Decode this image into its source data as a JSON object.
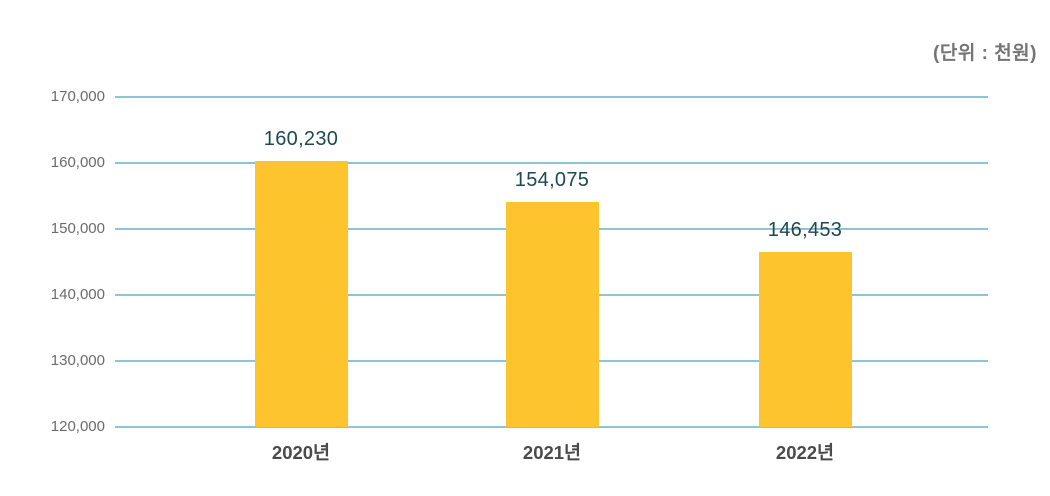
{
  "chart_data": {
    "type": "bar",
    "categories": [
      "2020년",
      "2021년",
      "2022년"
    ],
    "values": [
      160230,
      154075,
      146453
    ],
    "value_labels": [
      "160,230",
      "154,075",
      "146,453"
    ],
    "unit": "(단위 : 천원)",
    "title": "",
    "xlabel": "",
    "ylabel": "",
    "ylim": [
      120000,
      170000
    ],
    "yticks": [
      170000,
      160000,
      150000,
      140000,
      130000,
      120000
    ],
    "ytick_labels": [
      "170,000",
      "160,000",
      "150,000",
      "140,000",
      "130,000",
      "120,000"
    ],
    "grid": true,
    "legend": false,
    "colors": {
      "bar": "#FDC42E",
      "gridline": "#8CC5D6",
      "value_label": "#1B4A52",
      "ytick_label": "#6B6B6B",
      "category_label": "#4A4A4A",
      "unit_label": "#757575",
      "background": "#FFFFFF"
    }
  }
}
